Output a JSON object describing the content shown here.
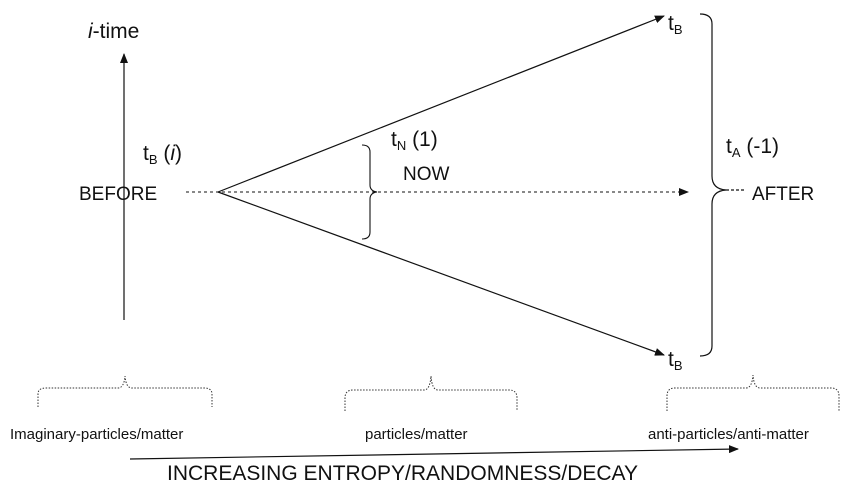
{
  "axis": {
    "vertical_label_italic": "i",
    "vertical_label_rest": "-time"
  },
  "points": {
    "top_tb_main": "t",
    "top_tb_sub": "B",
    "bottom_tb_main": "t",
    "bottom_tb_sub": "B"
  },
  "labels": {
    "before_t_main": "t",
    "before_t_sub": "B",
    "before_paren_open": " (",
    "before_i": "i",
    "before_paren_close": ")",
    "now_t_main": "t",
    "now_t_sub": "N",
    "now_value": " (1)",
    "now_word": "NOW",
    "after_t_main": "t",
    "after_t_sub": "A",
    "after_value": " (-1)",
    "before_word": "BEFORE",
    "after_word": "AFTER"
  },
  "categories": {
    "left": "Imaginary-particles/matter",
    "middle": "particles/matter",
    "right": "anti-particles/anti-matter"
  },
  "bottom_arrow_label": "INCREASING ENTROPY/RANDOMNESS/DECAY"
}
